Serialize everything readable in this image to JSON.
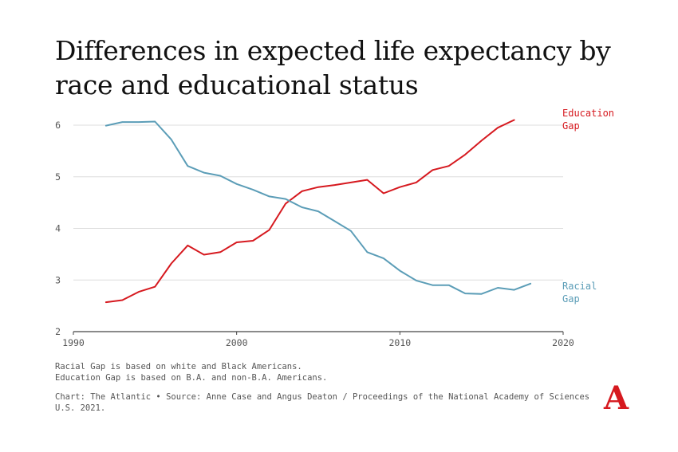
{
  "title": "Differences in expected life expectancy by race and educational status",
  "notes": [
    "Racial Gap is based on white and Black Americans.",
    "Education Gap is based on B.A. and non-B.A. Americans."
  ],
  "source": "Chart: The Atlantic • Source: Anne Case and Angus Deaton / Proceedings of the National Academy of Sciences U.S. 2021.",
  "logo_text": "A",
  "colors": {
    "education": "#d6191f",
    "racial": "#5b9db7",
    "grid": "#dddddd"
  },
  "chart_data": {
    "type": "line",
    "title": "Differences in expected life expectancy by race and educational status",
    "xlabel": "",
    "ylabel": "",
    "xlim": [
      1990,
      2020
    ],
    "ylim": [
      2,
      6
    ],
    "x_ticks": [
      "1990",
      "2000",
      "2010",
      "2020"
    ],
    "y_ticks": [
      "2",
      "3",
      "4",
      "5",
      "6"
    ],
    "grid": "horizontal",
    "series": [
      {
        "name": "Education Gap",
        "label_lines": [
          "Education",
          "Gap"
        ],
        "x": [
          1992,
          1993,
          1994,
          1995,
          1996,
          1997,
          1998,
          1999,
          2000,
          2001,
          2002,
          2003,
          2004,
          2005,
          2006,
          2007,
          2008,
          2009,
          2010,
          2011,
          2012,
          2013,
          2014,
          2015,
          2016,
          2017
        ],
        "values": [
          2.57,
          2.61,
          2.77,
          2.87,
          3.32,
          3.67,
          3.49,
          3.54,
          3.73,
          3.76,
          3.97,
          4.48,
          4.72,
          4.8,
          4.84,
          4.89,
          4.94,
          4.68,
          4.8,
          4.89,
          5.13,
          5.21,
          5.43,
          5.7,
          5.95,
          6.1
        ]
      },
      {
        "name": "Racial Gap",
        "label_lines": [
          "Racial",
          "Gap"
        ],
        "x": [
          1992,
          1993,
          1994,
          1995,
          1996,
          1997,
          1998,
          1999,
          2000,
          2001,
          2002,
          2003,
          2004,
          2005,
          2006,
          2007,
          2008,
          2009,
          2010,
          2011,
          2012,
          2013,
          2014,
          2015,
          2016,
          2017,
          2018
        ],
        "values": [
          5.99,
          6.06,
          6.06,
          6.07,
          5.72,
          5.21,
          5.08,
          5.02,
          4.86,
          4.75,
          4.62,
          4.57,
          4.41,
          4.33,
          4.14,
          3.95,
          3.54,
          3.42,
          3.18,
          2.99,
          2.9,
          2.9,
          2.74,
          2.73,
          2.85,
          2.81,
          2.93
        ]
      }
    ]
  }
}
